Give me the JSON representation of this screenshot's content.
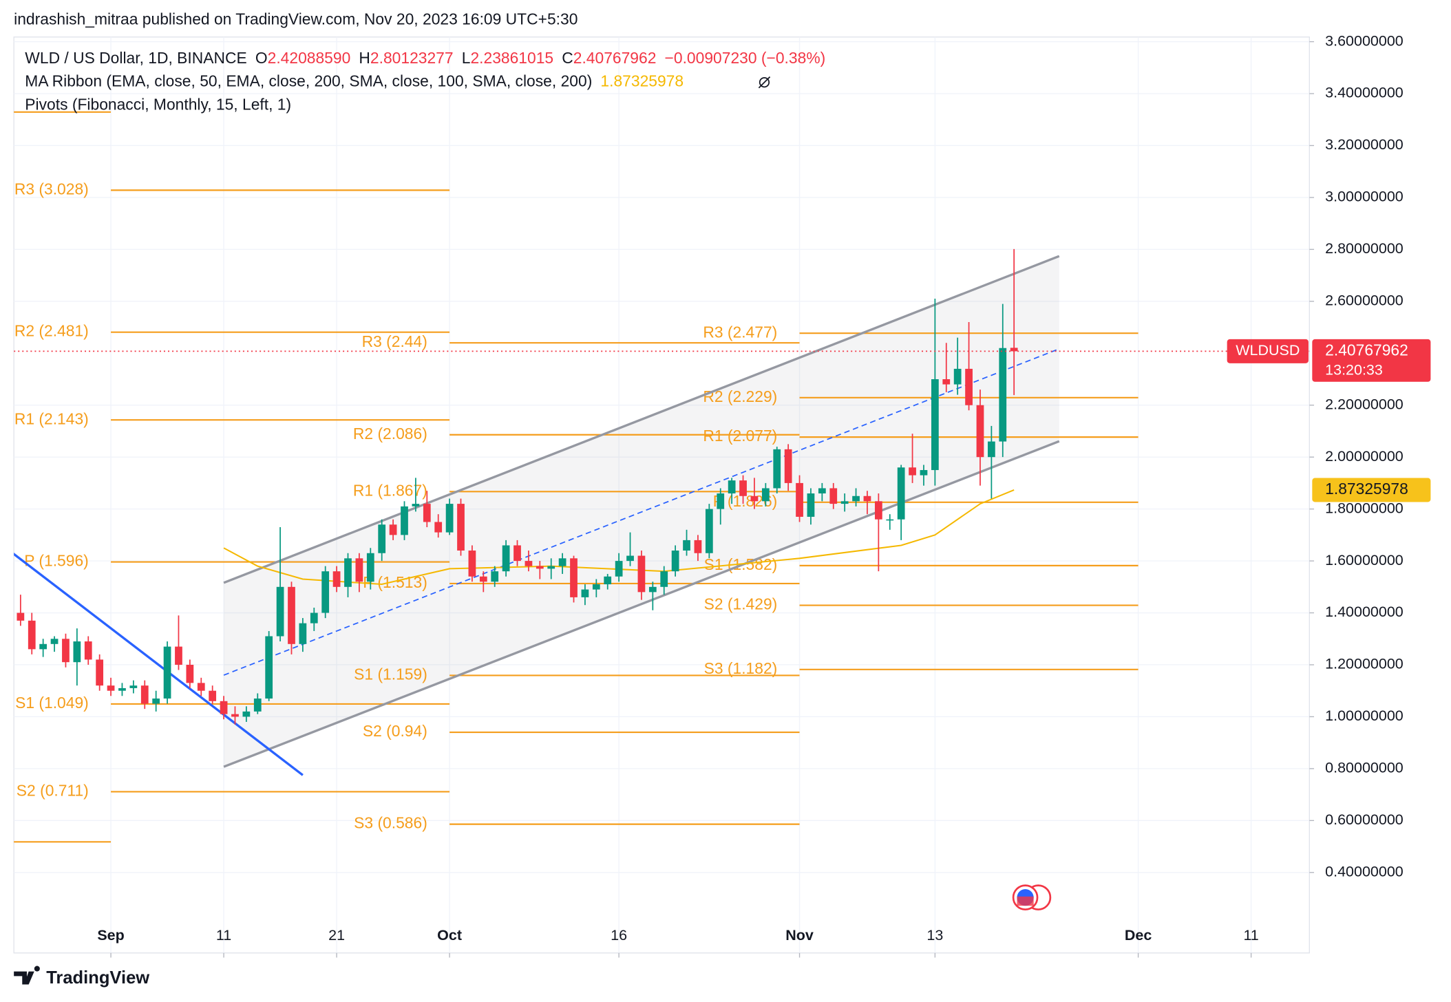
{
  "header": {
    "published": "indrashish_mitraa published on TradingView.com, Nov 20, 2023 16:09 UTC+5:30"
  },
  "footer": {
    "brand": "TradingView"
  },
  "chart_data": {
    "type": "candlestick",
    "legend": {
      "symbol": "WLD / US Dollar, 1D, BINANCE",
      "o_label": "O",
      "o": "2.42088590",
      "h_label": "H",
      "h": "2.80123277",
      "l_label": "L",
      "l": "2.23861015",
      "c_label": "C",
      "c": "2.40767962",
      "change": "−0.00907230 (−0.38%)",
      "ma": "MA Ribbon (EMA, close, 50, EMA, close, 200, SMA, close, 100, SMA, close, 200)",
      "ma_value": "1.87325978",
      "pivots": "Pivots (Fibonacci, Monthly, 15, Left, 1)"
    },
    "price_tag": {
      "symbol": "WLDUSD",
      "value": "2.40767962",
      "countdown": "13:20:33"
    },
    "up_color": "#089981",
    "down_color": "#f23645",
    "xlim": [
      "2023-08-23",
      "2023-12-16"
    ],
    "xticks": [
      {
        "value": "2023-09-01",
        "label": "Sep"
      },
      {
        "value": "2023-09-11",
        "label": "11"
      },
      {
        "value": "2023-09-21",
        "label": "21"
      },
      {
        "value": "2023-10-01",
        "label": "Oct"
      },
      {
        "value": "2023-10-16",
        "label": "16"
      },
      {
        "value": "2023-11-01",
        "label": "Nov"
      },
      {
        "value": "2023-11-13",
        "label": "13"
      },
      {
        "value": "2023-12-01",
        "label": "Dec"
      },
      {
        "value": "2023-12-11",
        "label": "11"
      }
    ],
    "ylim": [
      0.09,
      3.618
    ],
    "yticks": [
      {
        "value": 3.6,
        "label": "3.60000000"
      },
      {
        "value": 3.4,
        "label": "3.40000000"
      },
      {
        "value": 3.2,
        "label": "3.20000000"
      },
      {
        "value": 3.0,
        "label": "3.00000000"
      },
      {
        "value": 2.8,
        "label": "2.80000000"
      },
      {
        "value": 2.6,
        "label": "2.60000000"
      },
      {
        "value": 2.2,
        "label": "2.20000000"
      },
      {
        "value": 2.0,
        "label": "2.00000000"
      },
      {
        "value": 1.8,
        "label": "1.80000000"
      },
      {
        "value": 1.6,
        "label": "1.60000000"
      },
      {
        "value": 1.4,
        "label": "1.40000000"
      },
      {
        "value": 1.2,
        "label": "1.20000000"
      },
      {
        "value": 1.0,
        "label": "1.00000000"
      },
      {
        "value": 0.8,
        "label": "0.80000000"
      },
      {
        "value": 0.6,
        "label": "0.60000000"
      },
      {
        "value": 0.4,
        "label": "0.40000000"
      }
    ],
    "grid": true,
    "x": [
      "2023-08-24",
      "2023-08-25",
      "2023-08-26",
      "2023-08-27",
      "2023-08-28",
      "2023-08-29",
      "2023-08-30",
      "2023-08-31",
      "2023-09-01",
      "2023-09-02",
      "2023-09-03",
      "2023-09-04",
      "2023-09-05",
      "2023-09-06",
      "2023-09-07",
      "2023-09-08",
      "2023-09-09",
      "2023-09-10",
      "2023-09-11",
      "2023-09-12",
      "2023-09-13",
      "2023-09-14",
      "2023-09-15",
      "2023-09-16",
      "2023-09-17",
      "2023-09-18",
      "2023-09-19",
      "2023-09-20",
      "2023-09-21",
      "2023-09-22",
      "2023-09-23",
      "2023-09-24",
      "2023-09-25",
      "2023-09-26",
      "2023-09-27",
      "2023-09-28",
      "2023-09-29",
      "2023-09-30",
      "2023-10-01",
      "2023-10-02",
      "2023-10-03",
      "2023-10-04",
      "2023-10-05",
      "2023-10-06",
      "2023-10-07",
      "2023-10-08",
      "2023-10-09",
      "2023-10-10",
      "2023-10-11",
      "2023-10-12",
      "2023-10-13",
      "2023-10-14",
      "2023-10-15",
      "2023-10-16",
      "2023-10-17",
      "2023-10-18",
      "2023-10-19",
      "2023-10-20",
      "2023-10-21",
      "2023-10-22",
      "2023-10-23",
      "2023-10-24",
      "2023-10-25",
      "2023-10-26",
      "2023-10-27",
      "2023-10-28",
      "2023-10-29",
      "2023-10-30",
      "2023-10-31",
      "2023-11-01",
      "2023-11-02",
      "2023-11-03",
      "2023-11-04",
      "2023-11-05",
      "2023-11-06",
      "2023-11-07",
      "2023-11-08",
      "2023-11-09",
      "2023-11-10",
      "2023-11-11",
      "2023-11-12",
      "2023-11-13",
      "2023-11-14",
      "2023-11-15",
      "2023-11-16",
      "2023-11-17",
      "2023-11-18",
      "2023-11-19",
      "2023-11-20"
    ],
    "open": [
      1.4,
      1.37,
      1.26,
      1.28,
      1.3,
      1.21,
      1.29,
      1.22,
      1.12,
      1.1,
      1.11,
      1.12,
      1.05,
      1.07,
      1.27,
      1.2,
      1.13,
      1.1,
      1.06,
      1.01,
      1.0,
      1.02,
      1.07,
      1.31,
      1.5,
      1.28,
      1.36,
      1.4,
      1.56,
      1.5,
      1.61,
      1.52,
      1.63,
      1.74,
      1.7,
      1.81,
      1.82,
      1.75,
      1.71,
      1.82,
      1.64,
      1.54,
      1.52,
      1.56,
      1.66,
      1.6,
      1.58,
      1.57,
      1.58,
      1.61,
      1.46,
      1.49,
      1.51,
      1.54,
      1.6,
      1.62,
      1.48,
      1.5,
      1.56,
      1.64,
      1.68,
      1.63,
      1.8,
      1.86,
      1.91,
      1.85,
      1.83,
      1.88,
      2.03,
      1.9,
      1.77,
      1.86,
      1.88,
      1.82,
      1.83,
      1.85,
      1.83,
      1.76,
      1.76,
      1.96,
      1.93,
      1.95,
      2.3,
      2.28,
      2.34,
      2.2,
      2.0,
      2.06,
      2.4208859
    ],
    "high": [
      1.47,
      1.4,
      1.3,
      1.31,
      1.32,
      1.34,
      1.31,
      1.24,
      1.15,
      1.13,
      1.14,
      1.14,
      1.1,
      1.29,
      1.39,
      1.22,
      1.15,
      1.12,
      1.08,
      1.04,
      1.04,
      1.09,
      1.33,
      1.73,
      1.52,
      1.38,
      1.42,
      1.58,
      1.58,
      1.63,
      1.63,
      1.65,
      1.76,
      1.76,
      1.83,
      1.92,
      1.87,
      1.78,
      1.84,
      1.84,
      1.66,
      1.56,
      1.58,
      1.68,
      1.68,
      1.64,
      1.6,
      1.61,
      1.63,
      1.62,
      1.51,
      1.53,
      1.55,
      1.63,
      1.71,
      1.64,
      1.52,
      1.58,
      1.66,
      1.72,
      1.7,
      1.82,
      1.88,
      1.92,
      1.93,
      1.92,
      1.9,
      2.04,
      2.05,
      1.93,
      1.88,
      1.9,
      1.9,
      1.86,
      1.88,
      1.87,
      1.86,
      1.78,
      1.97,
      2.09,
      1.97,
      2.61,
      2.44,
      2.46,
      2.52,
      2.26,
      2.12,
      2.59,
      2.80123277
    ],
    "low": [
      1.35,
      1.24,
      1.23,
      1.25,
      1.19,
      1.12,
      1.2,
      1.1,
      1.08,
      1.08,
      1.09,
      1.03,
      1.02,
      1.05,
      1.18,
      1.11,
      1.08,
      1.05,
      0.99,
      0.97,
      0.98,
      1.01,
      1.06,
      1.29,
      1.24,
      1.25,
      1.33,
      1.38,
      1.48,
      1.46,
      1.48,
      1.49,
      1.6,
      1.68,
      1.68,
      1.79,
      1.73,
      1.69,
      1.7,
      1.62,
      1.52,
      1.48,
      1.5,
      1.54,
      1.58,
      1.56,
      1.53,
      1.53,
      1.55,
      1.44,
      1.43,
      1.46,
      1.49,
      1.52,
      1.58,
      1.45,
      1.41,
      1.47,
      1.54,
      1.62,
      1.6,
      1.61,
      1.74,
      1.82,
      1.82,
      1.8,
      1.81,
      1.86,
      1.87,
      1.75,
      1.74,
      1.83,
      1.8,
      1.79,
      1.81,
      1.78,
      1.56,
      1.72,
      1.68,
      1.9,
      1.89,
      1.89,
      2.25,
      2.24,
      2.18,
      1.89,
      1.84,
      2.0,
      2.23861015
    ],
    "close": [
      1.37,
      1.26,
      1.28,
      1.3,
      1.21,
      1.29,
      1.22,
      1.12,
      1.1,
      1.11,
      1.12,
      1.05,
      1.07,
      1.27,
      1.2,
      1.13,
      1.1,
      1.06,
      1.01,
      1.0,
      1.02,
      1.07,
      1.31,
      1.5,
      1.28,
      1.36,
      1.4,
      1.56,
      1.5,
      1.61,
      1.52,
      1.63,
      1.74,
      1.7,
      1.81,
      1.82,
      1.75,
      1.71,
      1.82,
      1.64,
      1.54,
      1.52,
      1.56,
      1.66,
      1.6,
      1.58,
      1.57,
      1.58,
      1.61,
      1.46,
      1.49,
      1.51,
      1.54,
      1.6,
      1.62,
      1.48,
      1.5,
      1.56,
      1.64,
      1.68,
      1.63,
      1.8,
      1.86,
      1.91,
      1.85,
      1.83,
      1.88,
      2.03,
      1.9,
      1.77,
      1.86,
      1.88,
      1.82,
      1.83,
      1.85,
      1.83,
      1.76,
      1.76,
      1.96,
      1.93,
      1.95,
      2.3,
      2.28,
      2.34,
      2.2,
      2.0,
      2.06,
      2.42,
      2.40767962
    ],
    "ma_line": {
      "color": "#f5b800",
      "x": [
        "2023-09-11",
        "2023-09-14",
        "2023-09-18",
        "2023-09-25",
        "2023-10-01",
        "2023-10-10",
        "2023-10-20",
        "2023-11-01",
        "2023-11-10",
        "2023-11-13",
        "2023-11-17",
        "2023-11-20"
      ],
      "values": [
        1.65,
        1.58,
        1.53,
        1.51,
        1.57,
        1.58,
        1.56,
        1.61,
        1.66,
        1.7,
        1.82,
        1.87325978
      ]
    },
    "pivot_color": "#f59d1b",
    "pivots": [
      {
        "start": "2023-08-01",
        "end": "2023-09-01",
        "levels": [
          {
            "value": 3.329
          },
          {
            "value": 0.518
          }
        ]
      },
      {
        "start": "2023-09-01",
        "end": "2023-10-01",
        "levels": [
          {
            "label": "R3 (3.028)",
            "value": 3.028
          },
          {
            "label": "R2 (2.481)",
            "value": 2.481
          },
          {
            "label": "R1 (2.143)",
            "value": 2.143
          },
          {
            "label": "P (1.596)",
            "value": 1.596
          },
          {
            "label": "S1 (1.049)",
            "value": 1.049
          },
          {
            "label": "S2 (0.711)",
            "value": 0.711
          }
        ]
      },
      {
        "start": "2023-10-01",
        "end": "2023-11-01",
        "levels": [
          {
            "label": "R3 (2.44)",
            "value": 2.44
          },
          {
            "label": "R2 (2.086)",
            "value": 2.086
          },
          {
            "label": "R1 (1.867)",
            "value": 1.867
          },
          {
            "label": "P (1.513)",
            "value": 1.513
          },
          {
            "label": "S1 (1.159)",
            "value": 1.159
          },
          {
            "label": "S2 (0.94)",
            "value": 0.94
          },
          {
            "label": "S3 (0.586)",
            "value": 0.586
          }
        ]
      },
      {
        "start": "2023-11-01",
        "end": "2023-12-01",
        "levels": [
          {
            "label": "R3 (2.477)",
            "value": 2.477
          },
          {
            "label": "R2 (2.229)",
            "value": 2.229
          },
          {
            "label": "R1 (2.077)",
            "value": 2.077
          },
          {
            "label": "P (1.826)",
            "value": 1.826
          },
          {
            "label": "S1 (1.582)",
            "value": 1.582
          },
          {
            "label": "S2 (1.429)",
            "value": 1.429
          },
          {
            "label": "S3 (1.182)",
            "value": 1.182
          }
        ]
      }
    ],
    "channel": {
      "x": [
        "2023-09-11",
        "2023-11-24"
      ],
      "upper": [
        1.516,
        2.774
      ],
      "middle": [
        1.16,
        2.417
      ],
      "lower": [
        0.807,
        2.061
      ]
    },
    "trend_line": {
      "color": "#2962ff",
      "x": [
        "2023-08-23",
        "2023-09-18"
      ],
      "values": [
        1.64,
        0.775
      ]
    }
  }
}
